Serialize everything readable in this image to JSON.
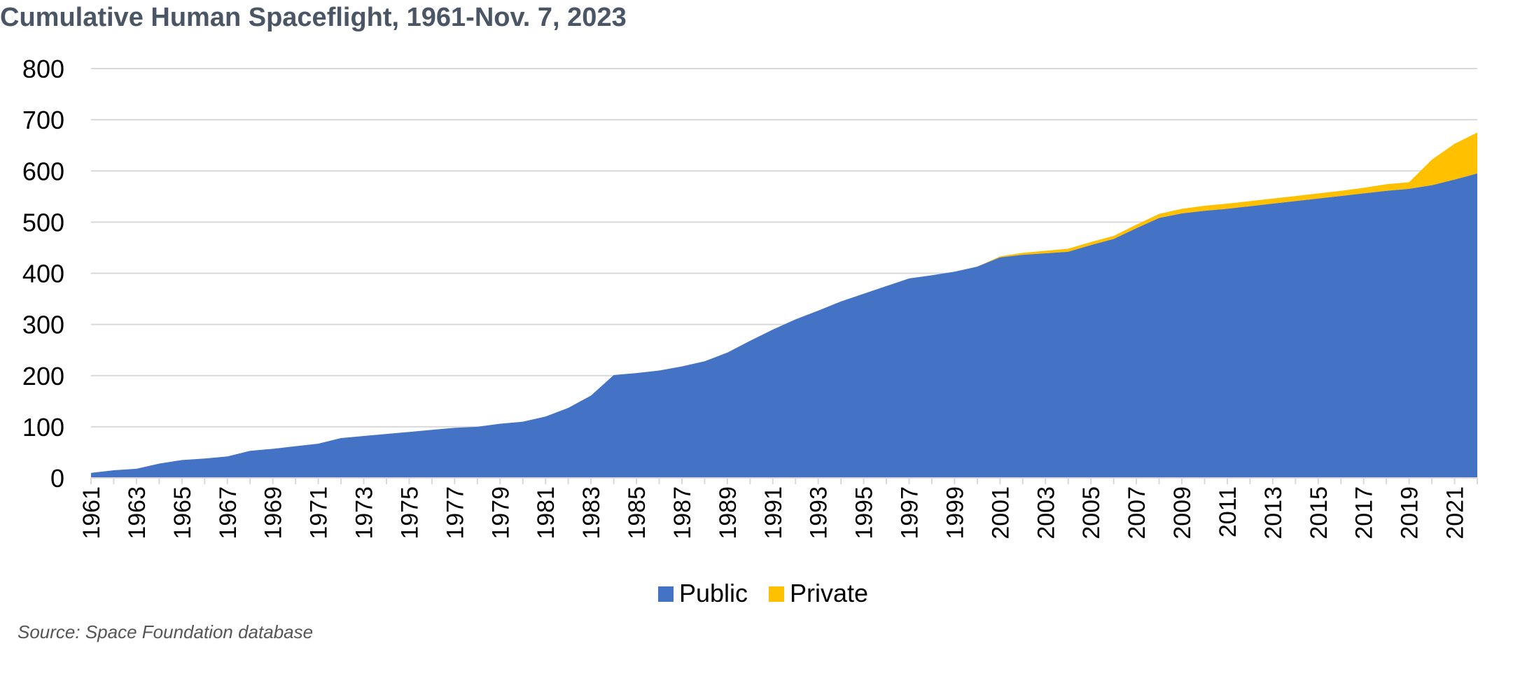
{
  "title": "Cumulative Human Spaceflight, 1961-Nov. 7, 2023",
  "source": "Source: Space Foundation database",
  "colors": {
    "public": "#4472C4",
    "private": "#FFC000",
    "grid": "#d9d9d9",
    "text": "#000000",
    "title": "#4a5566"
  },
  "chart_data": {
    "type": "area",
    "stacked": true,
    "x": [
      1961,
      1962,
      1963,
      1964,
      1965,
      1966,
      1967,
      1968,
      1969,
      1970,
      1971,
      1972,
      1973,
      1974,
      1975,
      1976,
      1977,
      1978,
      1979,
      1980,
      1981,
      1982,
      1983,
      1984,
      1985,
      1986,
      1987,
      1988,
      1989,
      1990,
      1991,
      1992,
      1993,
      1994,
      1995,
      1996,
      1997,
      1998,
      1999,
      2000,
      2001,
      2002,
      2003,
      2004,
      2005,
      2006,
      2007,
      2008,
      2009,
      2010,
      2011,
      2012,
      2013,
      2014,
      2015,
      2016,
      2017,
      2018,
      2019,
      2020,
      2021,
      2022
    ],
    "xticks": [
      "1961",
      "1963",
      "1965",
      "1967",
      "1969",
      "1971",
      "1973",
      "1975",
      "1977",
      "1979",
      "1981",
      "1983",
      "1985",
      "1987",
      "1989",
      "1991",
      "1993",
      "1995",
      "1997",
      "1999",
      "2001",
      "2003",
      "2005",
      "2007",
      "2009",
      "2011",
      "2013",
      "2015",
      "2017",
      "2019",
      "2021"
    ],
    "series": [
      {
        "name": "Public",
        "values": [
          10,
          15,
          18,
          28,
          35,
          38,
          42,
          53,
          57,
          62,
          67,
          78,
          82,
          86,
          90,
          94,
          98,
          100,
          106,
          110,
          120,
          137,
          161,
          201,
          205,
          210,
          218,
          228,
          245,
          268,
          290,
          310,
          327,
          345,
          360,
          375,
          390,
          396,
          403,
          413,
          431,
          436,
          439,
          442,
          455,
          467,
          488,
          508,
          517,
          522,
          526,
          531,
          536,
          541,
          546,
          551,
          556,
          561,
          565,
          572,
          583,
          595
        ]
      },
      {
        "name": "Private",
        "values": [
          0,
          0,
          0,
          0,
          0,
          0,
          0,
          0,
          0,
          0,
          0,
          0,
          0,
          0,
          0,
          0,
          0,
          0,
          0,
          0,
          0,
          0,
          0,
          0,
          0,
          0,
          0,
          0,
          0,
          0,
          0,
          0,
          0,
          0,
          0,
          0,
          0,
          0,
          0,
          0,
          2,
          4,
          5,
          6,
          6,
          6,
          7,
          8,
          9,
          10,
          10,
          10,
          10,
          10,
          10,
          10,
          11,
          13,
          13,
          50,
          70,
          80
        ]
      }
    ],
    "yticks": [
      0,
      100,
      200,
      300,
      400,
      500,
      600,
      700,
      800
    ],
    "ylim": [
      0,
      800
    ],
    "grid": true,
    "legend_position": "bottom-center"
  }
}
